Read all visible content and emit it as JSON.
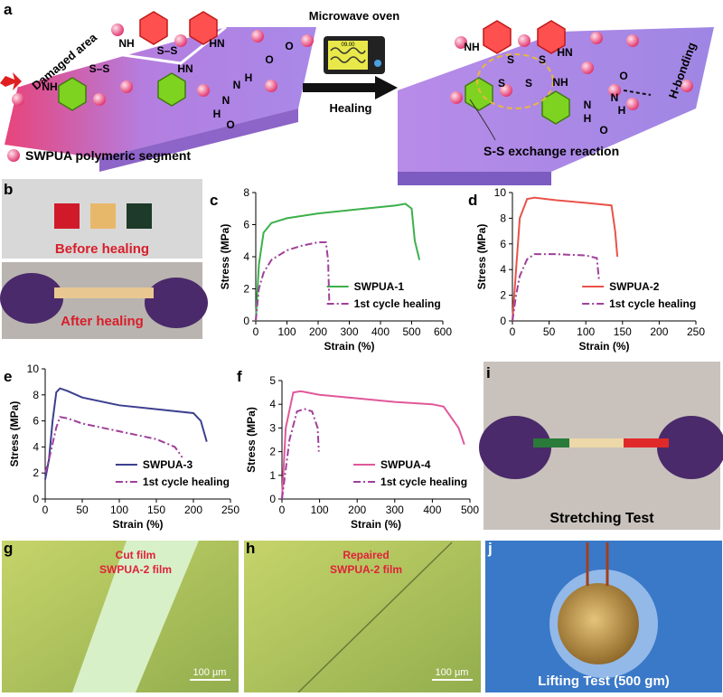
{
  "panels": {
    "a": {
      "label": "a",
      "damaged_area": "Damaged area",
      "oven": "Microwave oven",
      "oven_display": "09.00",
      "healing": "Healing",
      "h_bonding": "H-bonding",
      "exchange": "S-S exchange reaction",
      "segment_legend": "SWPUA polymeric segment",
      "chem_left": [
        "NH",
        "S–S",
        "HN",
        "O",
        "O",
        "NH",
        "S–S",
        "HN",
        "H",
        "N",
        "N",
        "H",
        "O"
      ],
      "chem_right": [
        "NH",
        "S",
        "S",
        "HN",
        "S",
        "S",
        "NH",
        "O",
        "N",
        "H",
        "N",
        "H",
        "O"
      ]
    },
    "b": {
      "label": "b",
      "before": "Before healing",
      "after": "After healing"
    },
    "i": {
      "label": "i",
      "caption": "Stretching Test"
    },
    "g": {
      "label": "g",
      "caption": [
        "Cut film",
        "SWPUA-2 film"
      ],
      "scale": "100 µm"
    },
    "h": {
      "label": "h",
      "caption": [
        "Repaired",
        "SWPUA-2 film"
      ],
      "scale": "100 µm"
    },
    "j": {
      "label": "j",
      "caption": "Lifting Test (500 gm)"
    }
  },
  "chart_data": [
    {
      "type": "line",
      "panel": "c",
      "x_label": "Strain (%)",
      "y_label": "Stress (MPa)",
      "xlim": [
        0,
        600
      ],
      "xticks": [
        0,
        100,
        200,
        300,
        400,
        500,
        600
      ],
      "ylim": [
        0,
        8
      ],
      "yticks": [
        0,
        2,
        4,
        6,
        8
      ],
      "series": [
        {
          "name": "SWPUA-1",
          "color": "#3cb04a",
          "dash": "solid",
          "x": [
            0,
            10,
            25,
            50,
            100,
            200,
            300,
            400,
            450,
            480,
            500,
            510,
            525
          ],
          "values": [
            0,
            3.5,
            5.5,
            6.1,
            6.4,
            6.7,
            6.9,
            7.1,
            7.2,
            7.3,
            7.0,
            5.0,
            3.8
          ]
        },
        {
          "name": "1st cycle healing",
          "color": "#a0409a",
          "dash": "dashdot",
          "x": [
            0,
            10,
            25,
            50,
            100,
            150,
            200,
            225,
            232,
            236
          ],
          "values": [
            0,
            2.0,
            3.0,
            3.8,
            4.4,
            4.7,
            4.9,
            4.9,
            3.8,
            1.0
          ]
        }
      ]
    },
    {
      "type": "line",
      "panel": "d",
      "x_label": "Strain (%)",
      "y_label": "Stress (MPa)",
      "xlim": [
        0,
        250
      ],
      "xticks": [
        0,
        50,
        100,
        150,
        200,
        250
      ],
      "ylim": [
        0,
        10
      ],
      "yticks": [
        0,
        2,
        4,
        6,
        8,
        10
      ],
      "series": [
        {
          "name": "SWPUA-2",
          "color": "#e8534a",
          "dash": "solid",
          "x": [
            0,
            5,
            10,
            20,
            30,
            60,
            100,
            135,
            140,
            143
          ],
          "values": [
            0,
            4.0,
            8.0,
            9.5,
            9.6,
            9.4,
            9.2,
            9.0,
            7.0,
            5.0
          ]
        },
        {
          "name": "1st cycle healing",
          "color": "#a0409a",
          "dash": "dashdot",
          "x": [
            0,
            5,
            10,
            20,
            30,
            60,
            100,
            115,
            118
          ],
          "values": [
            0,
            2.0,
            3.5,
            4.8,
            5.2,
            5.2,
            5.1,
            4.9,
            3.2
          ]
        }
      ]
    },
    {
      "type": "line",
      "panel": "e",
      "x_label": "Strain (%)",
      "y_label": "Stress (MPa)",
      "xlim": [
        0,
        250
      ],
      "xticks": [
        0,
        50,
        100,
        150,
        200,
        250
      ],
      "ylim": [
        0,
        10
      ],
      "yticks": [
        0,
        2,
        4,
        6,
        8,
        10
      ],
      "series": [
        {
          "name": "SWPUA-3",
          "color": "#3b3f8f",
          "dash": "solid",
          "x": [
            0,
            5,
            10,
            15,
            20,
            30,
            50,
            100,
            150,
            200,
            210,
            218
          ],
          "values": [
            1.5,
            3.0,
            6.0,
            8.2,
            8.5,
            8.3,
            7.8,
            7.2,
            6.9,
            6.6,
            6.0,
            4.4
          ]
        },
        {
          "name": "1st cycle healing",
          "color": "#a0409a",
          "dash": "dashdot",
          "x": [
            0,
            5,
            15,
            20,
            30,
            50,
            100,
            150,
            175,
            185
          ],
          "values": [
            2.0,
            3.0,
            5.5,
            6.3,
            6.2,
            5.8,
            5.2,
            4.6,
            4.0,
            3.2
          ]
        }
      ]
    },
    {
      "type": "line",
      "panel": "f",
      "x_label": "Strain (%)",
      "y_label": "Stress (MPa)",
      "xlim": [
        0,
        500
      ],
      "xticks": [
        0,
        100,
        200,
        300,
        400,
        500
      ],
      "ylim": [
        0,
        5
      ],
      "yticks": [
        0,
        1,
        2,
        3,
        4,
        5
      ],
      "series": [
        {
          "name": "SWPUA-4",
          "color": "#e0589a",
          "dash": "solid",
          "x": [
            0,
            10,
            30,
            50,
            100,
            200,
            300,
            400,
            430,
            470,
            485
          ],
          "values": [
            0,
            3.0,
            4.5,
            4.55,
            4.4,
            4.25,
            4.1,
            4.0,
            3.9,
            3.0,
            2.3
          ]
        },
        {
          "name": "1st cycle healing",
          "color": "#a0409a",
          "dash": "dashdot",
          "x": [
            0,
            20,
            40,
            60,
            80,
            95,
            98
          ],
          "values": [
            0,
            2.5,
            3.7,
            3.8,
            3.7,
            3.0,
            2.0
          ]
        }
      ]
    }
  ]
}
